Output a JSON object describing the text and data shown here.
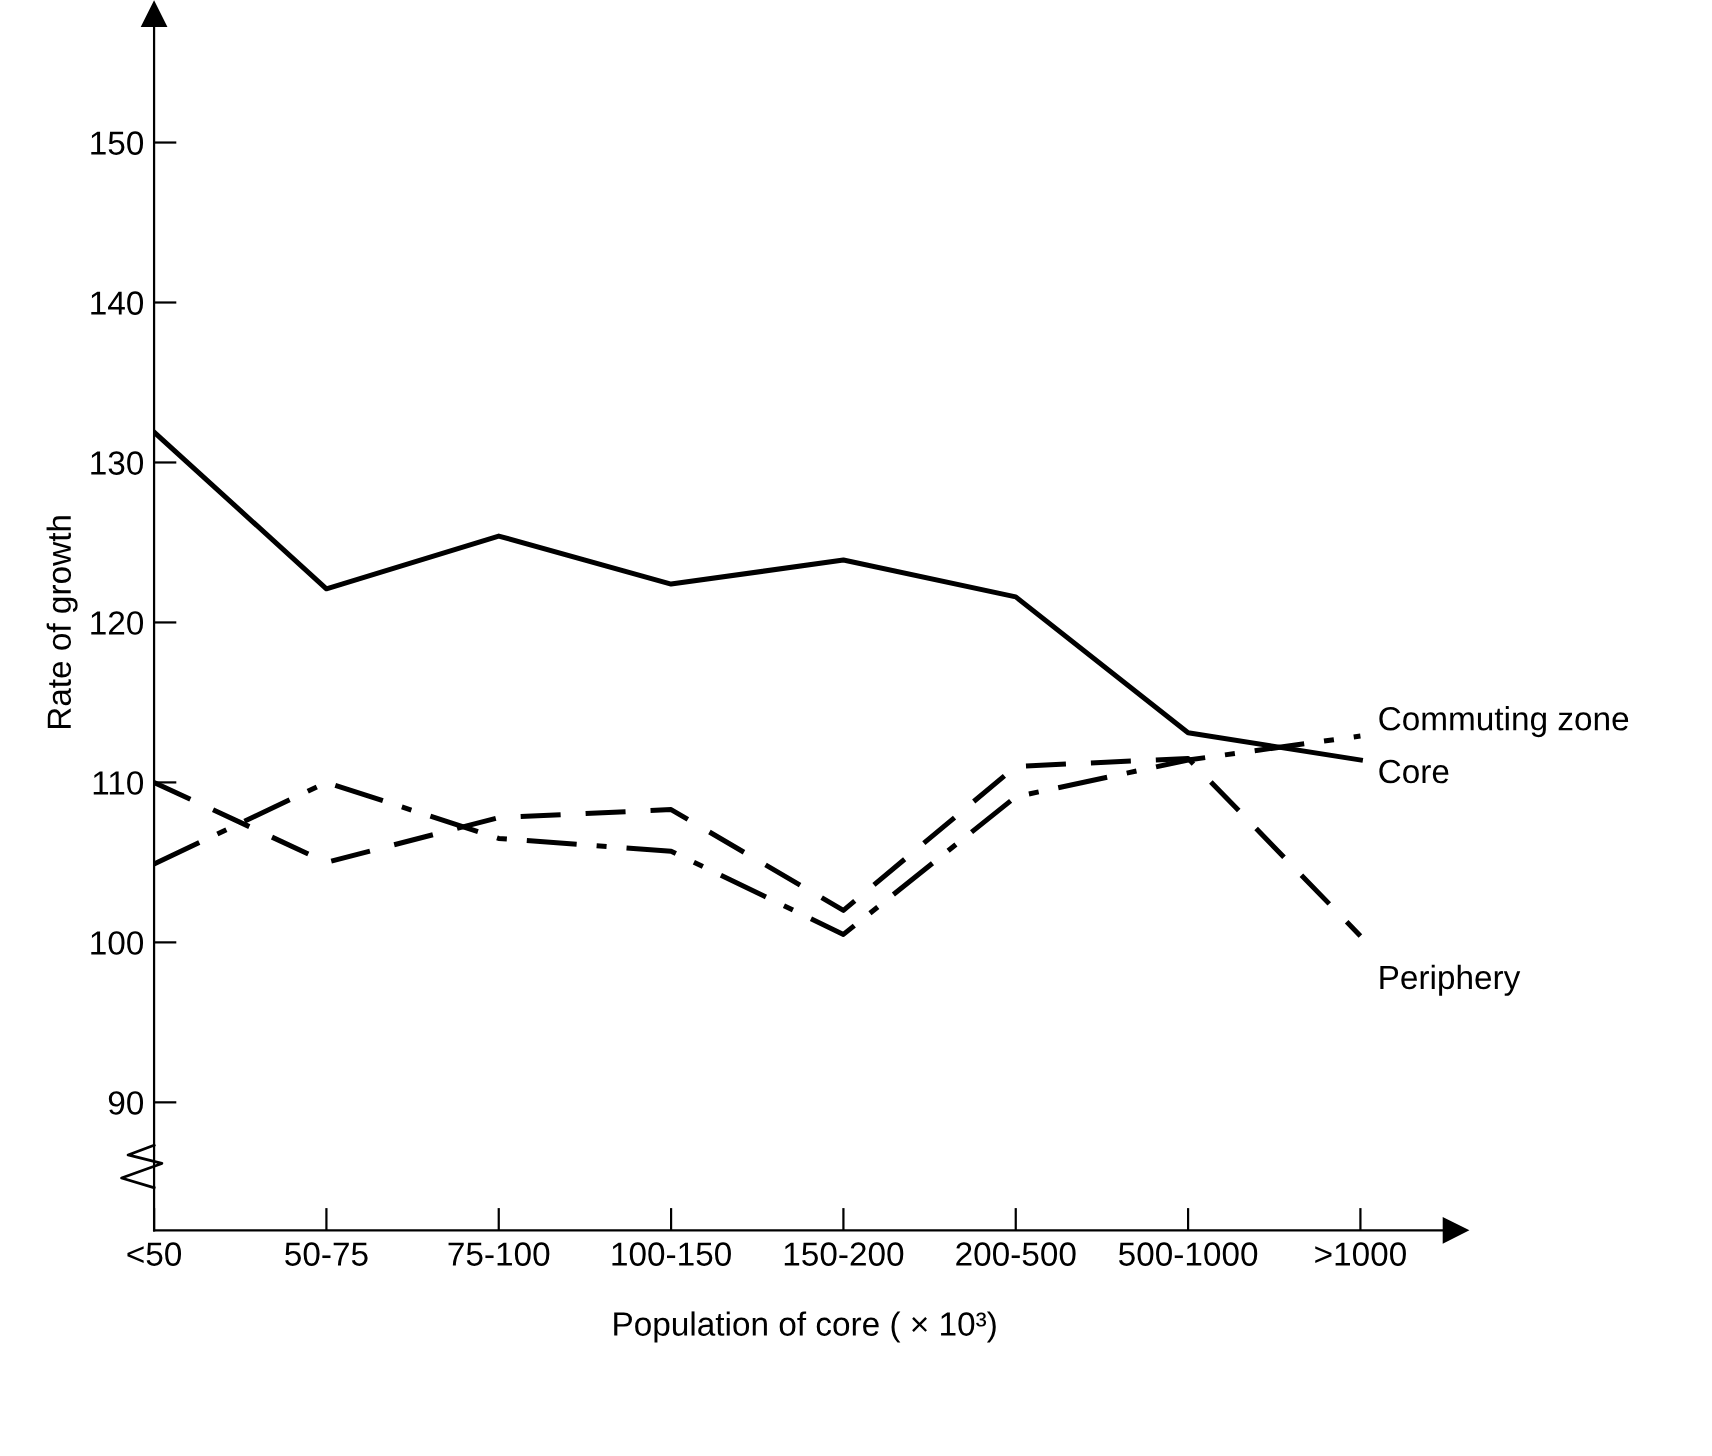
{
  "chart_data": {
    "type": "line",
    "xlabel": "Population of core ( × 10³)",
    "ylabel": "Rate of growth",
    "categories": [
      "<50",
      "50-75",
      "75-100",
      "100-150",
      "150-200",
      "200-500",
      "500-1000",
      ">1000"
    ],
    "series": [
      {
        "name": "Core",
        "color": "#000000",
        "line_style": "solid",
        "values": [
          131.9,
          122.1,
          125.4,
          122.4,
          123.9,
          121.6,
          113.1,
          111.4
        ]
      },
      {
        "name": "Periphery",
        "color": "#000000",
        "line_style": "dashed",
        "values": [
          110,
          105,
          107.8,
          108.3,
          102,
          111,
          111.5,
          100.4
        ]
      },
      {
        "name": "Commuting zone",
        "color": "#000000",
        "line_style": "dashdot",
        "values": [
          104.9,
          110,
          106.5,
          105.7,
          100.5,
          109.1,
          111.4,
          112.9
        ]
      }
    ],
    "ylim": [
      82,
      158
    ],
    "yticks": [
      90,
      100,
      110,
      120,
      130,
      140,
      150
    ],
    "grid": false,
    "legend": false,
    "marker": "none"
  }
}
